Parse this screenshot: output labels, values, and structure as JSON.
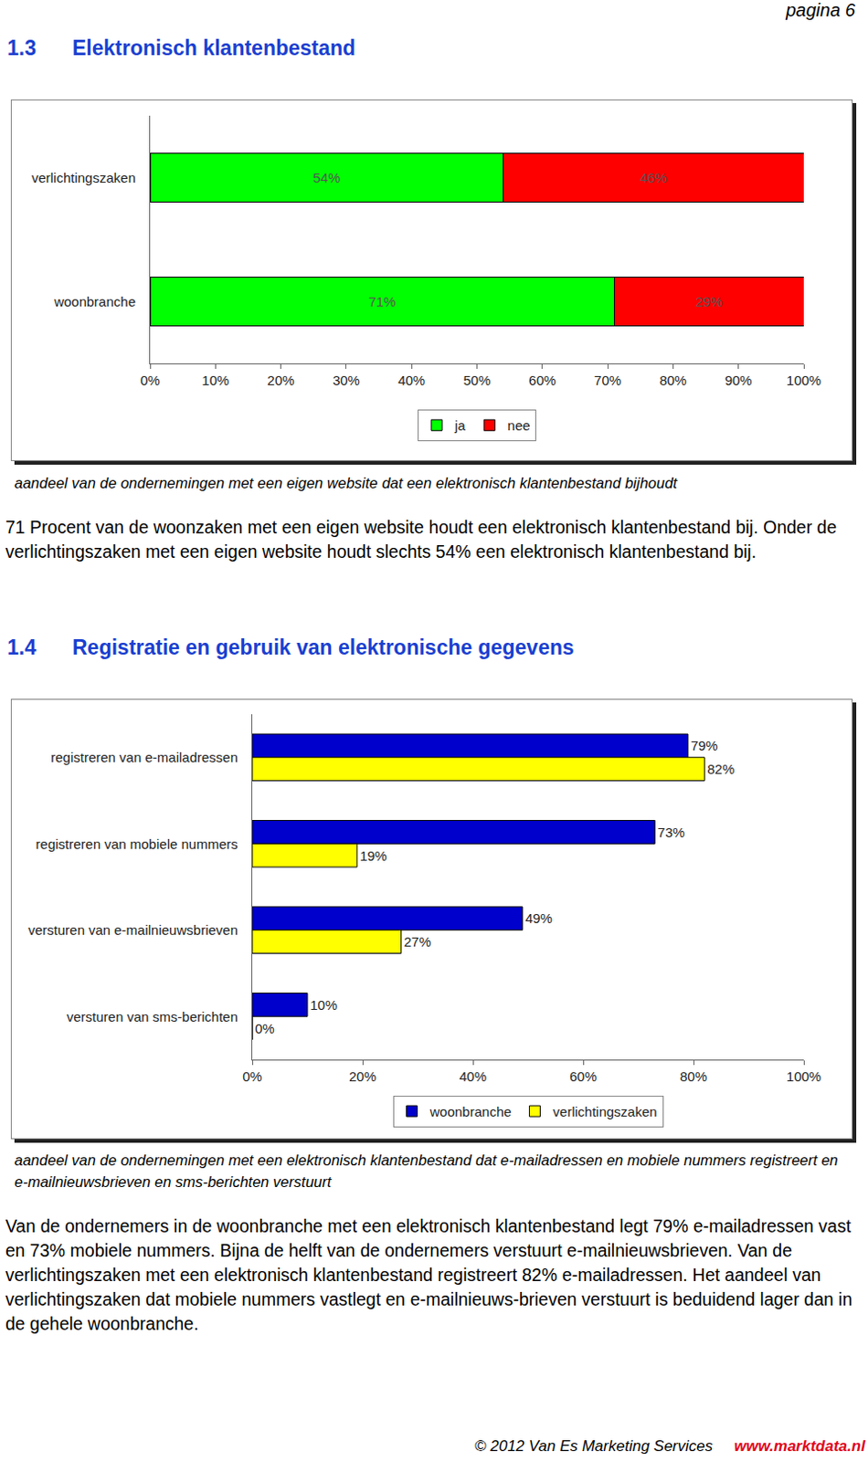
{
  "page_header": "pagina 6",
  "sections": [
    {
      "number": "1.3",
      "title": "Elektronisch klantenbestand",
      "caption": "aandeel van de ondernemingen met een eigen website dat een elektronisch klantenbestand bijhoudt",
      "paragraph": "71 Procent van de woonzaken met een eigen website houdt een elektronisch klantenbestand bij. Onder de verlichtingszaken met een eigen website houdt slechts 54% een elektronisch klantenbestand bij."
    },
    {
      "number": "1.4",
      "title": "Registratie en gebruik van elektronische gegevens",
      "caption": "aandeel van de ondernemingen met een elektronisch klantenbestand dat e-mailadressen en mobiele nummers registreert en e-mailnieuwsbrieven en sms-berichten verstuurt",
      "paragraph": "Van de ondernemers in de woonbranche met een elektronisch klantenbestand legt 79% e-mailadressen vast en 73% mobiele nummers. Bijna de helft van de ondernemers verstuurt e-mailnieuwsbrieven. Van de verlichtingszaken met een elektronisch klantenbestand registreert 82% e-mailadressen. Het aandeel van verlichtingszaken dat mobiele nummers vastlegt en e-mailnieuws-brieven verstuurt is beduidend lager dan in de gehele woonbranche."
    }
  ],
  "chart_data": [
    {
      "type": "bar",
      "orientation": "horizontal",
      "stacked": true,
      "data_labels": true,
      "grid": false,
      "legend": "bottom",
      "categories": [
        "verlichtingszaken",
        "woonbranche"
      ],
      "series": [
        {
          "name": "ja",
          "color": "#00ff00",
          "values": [
            54,
            71
          ],
          "value_labels": [
            "54%",
            "71%"
          ]
        },
        {
          "name": "nee",
          "color": "#ff0000",
          "values": [
            46,
            29
          ],
          "value_labels": [
            "46%",
            "29%"
          ]
        }
      ],
      "xlim": [
        0,
        100
      ],
      "xticks": [
        {
          "value": 0,
          "label": "0%"
        },
        {
          "value": 10,
          "label": "10%"
        },
        {
          "value": 20,
          "label": "20%"
        },
        {
          "value": 30,
          "label": "30%"
        },
        {
          "value": 40,
          "label": "40%"
        },
        {
          "value": 50,
          "label": "50%"
        },
        {
          "value": 60,
          "label": "60%"
        },
        {
          "value": 70,
          "label": "70%"
        },
        {
          "value": 80,
          "label": "80%"
        },
        {
          "value": 90,
          "label": "90%"
        },
        {
          "value": 100,
          "label": "100%"
        }
      ]
    },
    {
      "type": "bar",
      "orientation": "horizontal",
      "stacked": false,
      "data_labels": true,
      "grid": false,
      "legend": "bottom",
      "categories": [
        "registreren van e-mailadressen",
        "registreren van mobiele nummers",
        "versturen van e-mailnieuwsbrieven",
        "versturen van sms-berichten"
      ],
      "series": [
        {
          "name": "woonbranche",
          "color": "#0000cc",
          "values": [
            79,
            73,
            49,
            10
          ],
          "value_labels": [
            "79%",
            "73%",
            "49%",
            "10%"
          ]
        },
        {
          "name": "verlichtingszaken",
          "color": "#ffff00",
          "values": [
            82,
            19,
            27,
            0
          ],
          "value_labels": [
            "82%",
            "19%",
            "27%",
            "0%"
          ]
        }
      ],
      "xlim": [
        0,
        100
      ],
      "xticks": [
        {
          "value": 0,
          "label": "0%"
        },
        {
          "value": 20,
          "label": "20%"
        },
        {
          "value": 40,
          "label": "40%"
        },
        {
          "value": 60,
          "label": "60%"
        },
        {
          "value": 80,
          "label": "80%"
        },
        {
          "value": 100,
          "label": "100%"
        }
      ]
    }
  ],
  "footer": {
    "copyright": "© 2012 Van Es Marketing Services",
    "url": "www.marktdata.nl"
  }
}
